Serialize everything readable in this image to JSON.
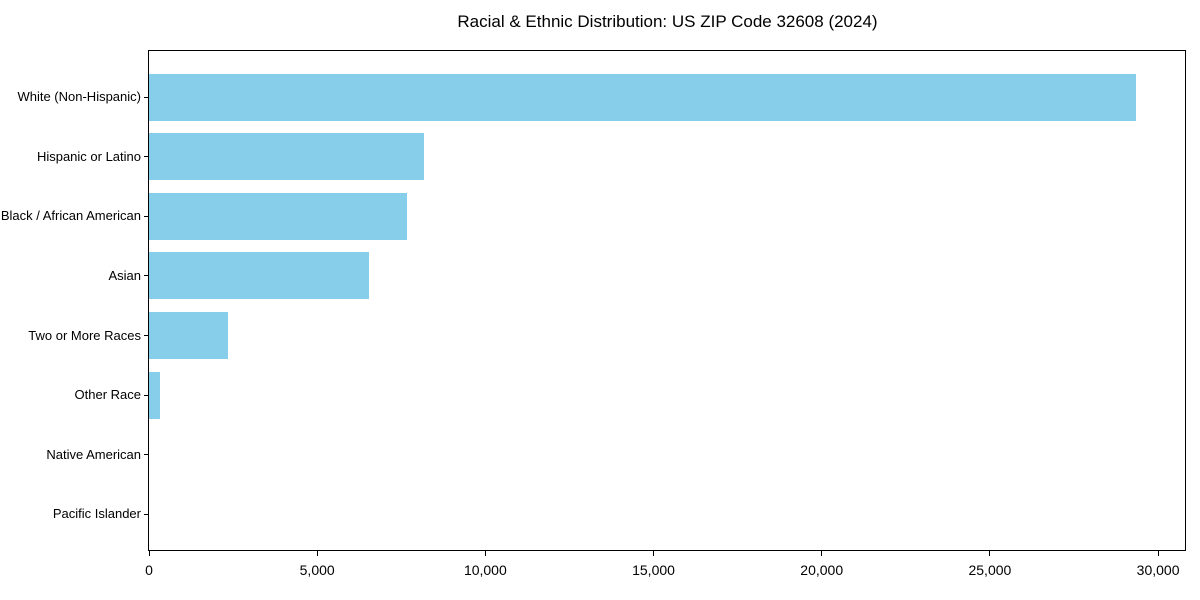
{
  "chart_data": {
    "type": "bar",
    "orientation": "horizontal",
    "title": "Racial & Ethnic Distribution: US ZIP Code 32608 (2024)",
    "categories": [
      "White (Non-Hispanic)",
      "Hispanic or Latino",
      "Black / African American",
      "Asian",
      "Two or More Races",
      "Other Race",
      "Native American",
      "Pacific Islander"
    ],
    "values": [
      29350,
      8180,
      7670,
      6540,
      2350,
      330,
      0,
      0
    ],
    "xlabel": "",
    "ylabel": "",
    "xlim": [
      0,
      30800
    ],
    "xticks": [
      {
        "value": 0,
        "label": "0"
      },
      {
        "value": 5000,
        "label": "5,000"
      },
      {
        "value": 10000,
        "label": "10,000"
      },
      {
        "value": 15000,
        "label": "15,000"
      },
      {
        "value": 20000,
        "label": "20,000"
      },
      {
        "value": 25000,
        "label": "25,000"
      },
      {
        "value": 30000,
        "label": "30,000"
      }
    ],
    "bar_color": "#87CEEB",
    "axis_color": "#000000",
    "text_color": "#000000",
    "background_color": "#ffffff",
    "grid": false,
    "legend": "none"
  }
}
